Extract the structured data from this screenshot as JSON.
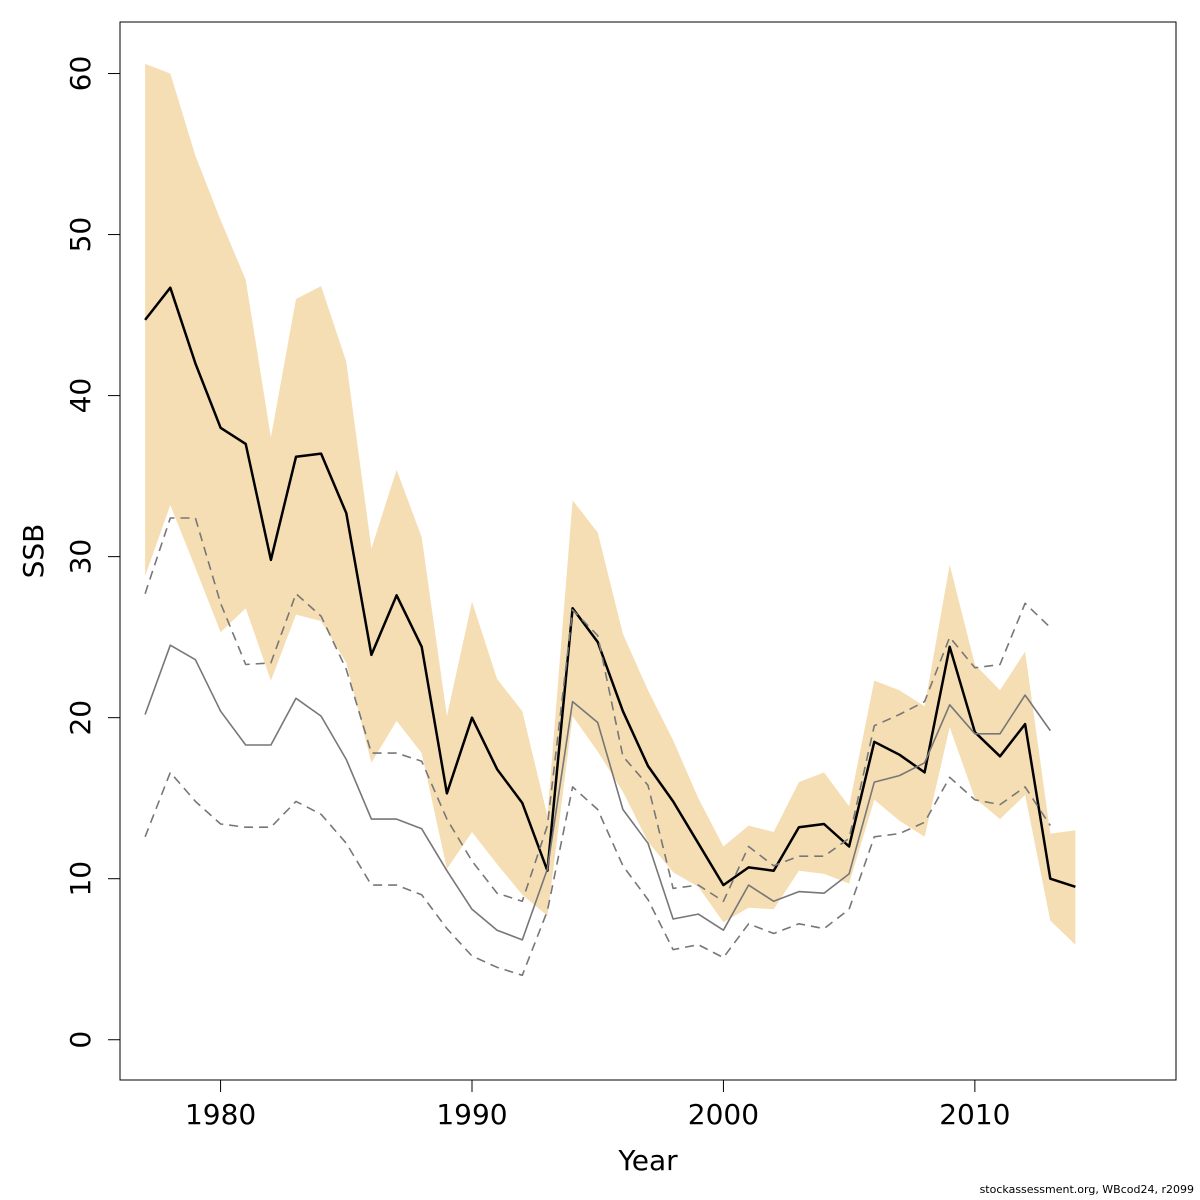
{
  "chart_data": {
    "type": "line",
    "xlabel": "Year",
    "ylabel": "SSB",
    "xlim": [
      1976,
      2018
    ],
    "ylim": [
      -2.5,
      63.2
    ],
    "x_ticks": [
      1980,
      1990,
      2000,
      2010
    ],
    "y_ticks": [
      0,
      10,
      20,
      30,
      40,
      50,
      60
    ],
    "grid": false,
    "band_color": "#f5deb3",
    "years": [
      1977,
      1978,
      1979,
      1980,
      1981,
      1982,
      1983,
      1984,
      1985,
      1986,
      1987,
      1988,
      1989,
      1990,
      1991,
      1992,
      1993,
      1994,
      1995,
      1996,
      1997,
      1998,
      1999,
      2000,
      2001,
      2002,
      2003,
      2004,
      2005,
      2006,
      2007,
      2008,
      2009,
      2010,
      2011,
      2012,
      2013,
      2014
    ],
    "band_upper": [
      60.6,
      60.0,
      54.9,
      50.9,
      47.2,
      37.4,
      46.0,
      46.8,
      42.1,
      30.5,
      35.4,
      31.2,
      20.1,
      27.2,
      22.4,
      20.4,
      13.9,
      33.5,
      31.5,
      25.2,
      21.7,
      18.6,
      15.0,
      12.0,
      13.3,
      12.9,
      16.0,
      16.6,
      14.5,
      22.3,
      21.7,
      20.7,
      29.5,
      23.3,
      21.7,
      24.1,
      12.8,
      13.0
    ],
    "band_lower": [
      28.8,
      33.2,
      29.3,
      25.3,
      26.8,
      22.3,
      26.4,
      26.0,
      23.4,
      17.2,
      19.8,
      17.8,
      10.6,
      12.9,
      10.9,
      9.0,
      7.7,
      20.1,
      17.9,
      15.4,
      12.3,
      10.4,
      9.5,
      7.3,
      8.2,
      8.1,
      10.5,
      10.3,
      9.7,
      14.9,
      13.6,
      12.6,
      19.4,
      15.0,
      13.7,
      15.2,
      7.4,
      5.9
    ],
    "series": [
      {
        "style": "solid-black",
        "values": [
          44.7,
          46.7,
          42.0,
          38.0,
          37.0,
          29.8,
          36.2,
          36.4,
          32.7,
          23.9,
          27.6,
          24.4,
          15.3,
          20.0,
          16.8,
          14.7,
          10.5,
          26.8,
          24.7,
          20.4,
          17.0,
          14.8,
          12.2,
          9.6,
          10.7,
          10.5,
          13.2,
          13.4,
          12.0,
          18.5,
          17.7,
          16.6,
          24.4,
          19.1,
          17.6,
          19.6,
          10.0,
          9.5
        ]
      },
      {
        "style": "solid-gray",
        "values": [
          20.2,
          24.5,
          23.6,
          20.4,
          18.3,
          18.3,
          21.2,
          20.1,
          17.4,
          13.7,
          13.7,
          13.1,
          10.5,
          8.1,
          6.8,
          6.2,
          10.6,
          21.0,
          19.7,
          14.3,
          12.2,
          7.5,
          7.8,
          6.8,
          9.6,
          8.6,
          9.2,
          9.1,
          10.3,
          16.0,
          16.4,
          17.2,
          20.8,
          19.0,
          19.0,
          21.4,
          19.2,
          null
        ]
      },
      {
        "style": "dashed-gray",
        "values": [
          27.7,
          32.4,
          32.4,
          27.1,
          23.3,
          23.4,
          27.7,
          26.3,
          23.0,
          17.8,
          17.8,
          17.3,
          13.7,
          11.1,
          9.1,
          8.6,
          13.3,
          26.7,
          25.1,
          17.6,
          15.8,
          9.4,
          9.6,
          8.6,
          12.0,
          10.8,
          11.4,
          11.4,
          12.5,
          19.5,
          20.2,
          21.0,
          25.0,
          23.1,
          23.3,
          27.1,
          25.6,
          null
        ]
      },
      {
        "style": "dashed-gray",
        "values": [
          12.6,
          16.6,
          14.8,
          13.4,
          13.2,
          13.2,
          14.8,
          14.0,
          12.2,
          9.6,
          9.6,
          9.0,
          6.9,
          5.2,
          4.5,
          4.0,
          8.0,
          15.7,
          14.3,
          10.8,
          8.7,
          5.6,
          5.9,
          5.1,
          7.2,
          6.6,
          7.2,
          6.9,
          8.1,
          12.6,
          12.8,
          13.5,
          16.3,
          14.9,
          14.6,
          15.7,
          13.3,
          null
        ]
      }
    ]
  },
  "footer": "stockassessment.org, WBcod24, r2099"
}
